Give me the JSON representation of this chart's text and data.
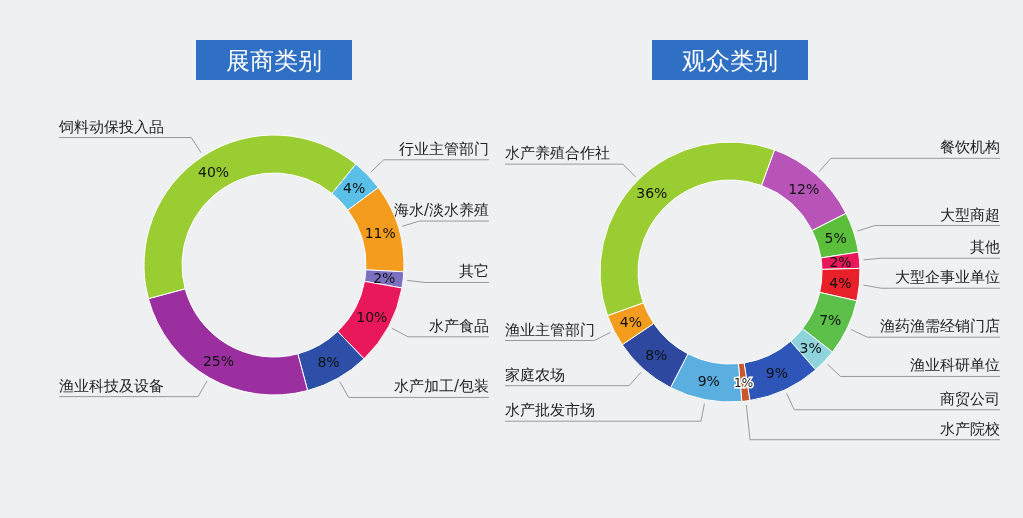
{
  "chart_data": [
    {
      "type": "donut",
      "title": "展商类别",
      "data_labels": true,
      "value_labels": [
        "4%",
        "11%",
        "2%",
        "10%",
        "8%",
        "25%",
        "40%"
      ],
      "categories": [
        "行业主管部门",
        "海水/淡水养殖",
        "其它",
        "水产食品",
        "水产加工/包装",
        "渔业科技及设备",
        "饲料动保投入品"
      ],
      "values": [
        4,
        11,
        2,
        10,
        8,
        25,
        40
      ],
      "colors": [
        "#5bc0e8",
        "#f39c1e",
        "#7a6fc0",
        "#e8185a",
        "#2e4fa8",
        "#9b2fa0",
        "#9acd32"
      ]
    },
    {
      "type": "donut",
      "title": "观众类别",
      "data_labels": true,
      "value_labels": [
        "12%",
        "5%",
        "2%",
        "4%",
        "7%",
        "3%",
        "9%",
        "1%",
        "9%",
        "8%",
        "4%",
        "36%"
      ],
      "categories": [
        "餐饮机构",
        "大型商超",
        "其他",
        "大型企事业单位",
        "渔药渔需经销门店",
        "渔业科研单位",
        "商贸公司",
        "水产院校",
        "水产批发市场",
        "家庭农场",
        "渔业主管部门",
        "水产养殖合作社"
      ],
      "values": [
        12,
        5,
        2,
        4,
        7,
        3,
        9,
        1,
        9,
        8,
        4,
        36
      ],
      "colors": [
        "#b854b8",
        "#5cbf3c",
        "#e8185a",
        "#e8202a",
        "#5cbf4a",
        "#8fd3dc",
        "#2e56b8",
        "#c8582a",
        "#5aaee0",
        "#2e48a0",
        "#f39c1e",
        "#9acd32"
      ]
    }
  ]
}
